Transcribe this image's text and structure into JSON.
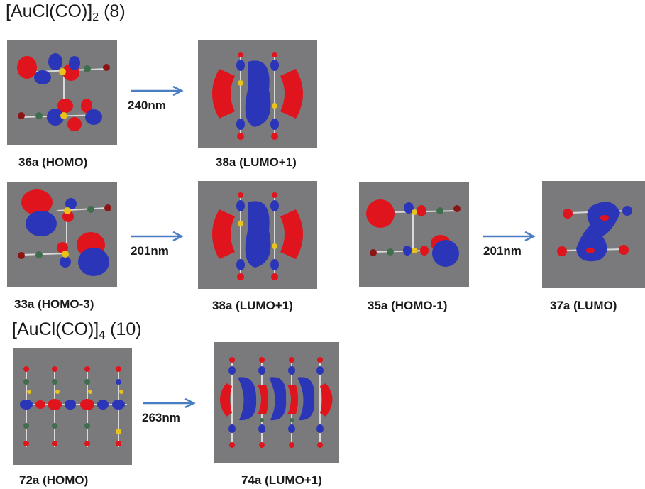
{
  "section1": {
    "title_pre": "[AuCl(CO)]",
    "title_sub": "2",
    "title_post": " (8)",
    "transitions": [
      {
        "from": "36a (HOMO)",
        "wavelength": "240nm",
        "to": "38a (LUMO+1)"
      }
    ]
  },
  "section1b": {
    "transitions": [
      {
        "from": "33a (HOMO-3)",
        "wavelength": "201nm",
        "to": "38a (LUMO+1)"
      },
      {
        "from": "35a (HOMO-1)",
        "wavelength": "201nm",
        "to": "37a (LUMO)"
      }
    ]
  },
  "section2": {
    "title_pre": "[AuCl(CO)]",
    "title_sub": "4",
    "title_post": " (10)",
    "transitions": [
      {
        "from": "72a (HOMO)",
        "wavelength": "263nm",
        "to": "74a (LUMO+1)"
      }
    ]
  },
  "colors": {
    "panel_bg": "#7a7a7c",
    "orbital_positive": "#e0141c",
    "orbital_negative": "#2a35b8",
    "arrow": "#4a7ec2",
    "gold_atom": "#e8c21c",
    "chlorine_atom": "#3f6e4d",
    "carbon_atom": "#3f6e4d",
    "oxygen_atom": "#8a1515"
  }
}
